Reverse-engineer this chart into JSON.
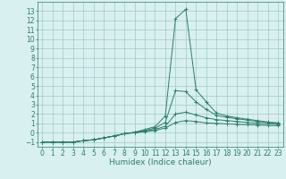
{
  "title": "",
  "xlabel": "Humidex (Indice chaleur)",
  "x": [
    0,
    1,
    2,
    3,
    4,
    5,
    6,
    7,
    8,
    9,
    10,
    11,
    12,
    13,
    14,
    15,
    16,
    17,
    18,
    19,
    20,
    21,
    22,
    23
  ],
  "line1": [
    -1,
    -1,
    -1,
    -1,
    -0.85,
    -0.75,
    -0.55,
    -0.35,
    -0.1,
    0.05,
    0.35,
    0.65,
    1.8,
    12.2,
    13.2,
    4.6,
    3.3,
    2.1,
    1.8,
    1.6,
    1.45,
    1.3,
    1.15,
    1.05
  ],
  "line2": [
    -1,
    -1,
    -1,
    -1,
    -0.85,
    -0.75,
    -0.55,
    -0.35,
    -0.1,
    0.05,
    0.25,
    0.5,
    1.1,
    4.5,
    4.4,
    3.3,
    2.5,
    1.85,
    1.65,
    1.5,
    1.35,
    1.2,
    1.1,
    1.0
  ],
  "line3": [
    -1,
    -1,
    -1,
    -1,
    -0.85,
    -0.75,
    -0.55,
    -0.35,
    -0.1,
    0.0,
    0.15,
    0.35,
    0.7,
    2.0,
    2.2,
    1.9,
    1.6,
    1.4,
    1.3,
    1.2,
    1.1,
    1.0,
    0.95,
    0.9
  ],
  "line4": [
    -1,
    -1,
    -1,
    -1,
    -0.85,
    -0.75,
    -0.55,
    -0.35,
    -0.1,
    0.0,
    0.12,
    0.25,
    0.5,
    1.1,
    1.3,
    1.2,
    1.05,
    1.0,
    0.95,
    0.9,
    0.85,
    0.82,
    0.78,
    0.75
  ],
  "line_color": "#2d7d6b",
  "bg_color": "#d9f0f0",
  "grid_color": "#a0c8c8",
  "ylim": [
    -1.5,
    14.0
  ],
  "xlim": [
    -0.5,
    23.5
  ],
  "yticks": [
    -1,
    0,
    1,
    2,
    3,
    4,
    5,
    6,
    7,
    8,
    9,
    10,
    11,
    12,
    13
  ],
  "xticks": [
    0,
    1,
    2,
    3,
    4,
    5,
    6,
    7,
    8,
    9,
    10,
    11,
    12,
    13,
    14,
    15,
    16,
    17,
    18,
    19,
    20,
    21,
    22,
    23
  ],
  "tick_fontsize": 5.5,
  "xlabel_fontsize": 6.5
}
